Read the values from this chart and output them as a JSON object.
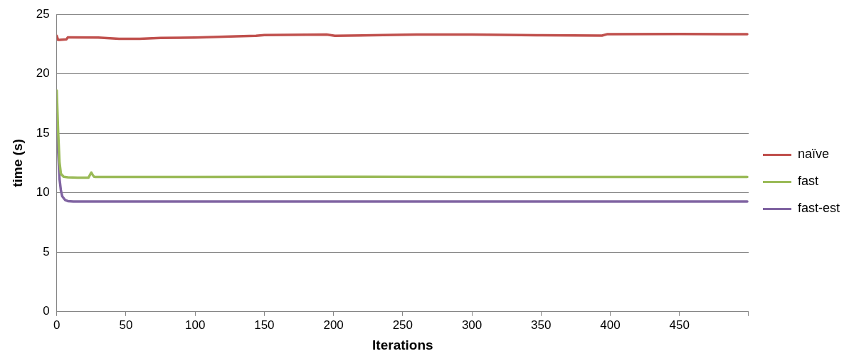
{
  "chart_data": {
    "type": "line",
    "xlabel": "Iterations",
    "ylabel": "time (s)",
    "xlim": [
      0,
      500
    ],
    "ylim": [
      0,
      25
    ],
    "xticks": [
      0,
      50,
      100,
      150,
      200,
      250,
      300,
      350,
      400,
      450,
      {
        "value": 500,
        "label": null
      }
    ],
    "yticks": [
      0,
      5,
      10,
      15,
      20,
      25
    ],
    "grid": "y",
    "legend": "right",
    "marker": "none",
    "line_style": "solid",
    "series": [
      {
        "name": "naïve",
        "color": "#c0504d",
        "x": [
          0,
          1,
          2,
          7,
          8,
          9,
          30,
          45,
          60,
          75,
          100,
          130,
          144,
          150,
          195,
          201,
          228,
          260,
          300,
          347,
          394,
          398,
          450,
          499
        ],
        "values": [
          23.2,
          22.85,
          22.85,
          22.9,
          23.06,
          23.06,
          23.05,
          22.95,
          22.95,
          23.02,
          23.05,
          23.15,
          23.2,
          23.26,
          23.3,
          23.2,
          23.25,
          23.3,
          23.3,
          23.25,
          23.22,
          23.34,
          23.35,
          23.33
        ]
      },
      {
        "name": "fast",
        "color": "#9bbb59",
        "x": [
          0,
          1,
          2,
          3,
          5,
          8,
          15,
          23,
          24,
          25,
          26,
          27,
          28,
          40,
          100,
          200,
          300,
          400,
          499
        ],
        "values": [
          18.6,
          15.2,
          12.6,
          11.6,
          11.35,
          11.3,
          11.28,
          11.28,
          11.5,
          11.7,
          11.5,
          11.35,
          11.33,
          11.33,
          11.33,
          11.35,
          11.33,
          11.33,
          11.33
        ]
      },
      {
        "name": "fast-est",
        "color": "#8064a2",
        "x": [
          0,
          1,
          2,
          3,
          4,
          6,
          8,
          12,
          20,
          50,
          100,
          200,
          300,
          400,
          499
        ],
        "values": [
          16.6,
          13.5,
          11.2,
          10.2,
          9.7,
          9.4,
          9.3,
          9.27,
          9.27,
          9.27,
          9.27,
          9.27,
          9.27,
          9.27,
          9.27
        ]
      }
    ]
  }
}
